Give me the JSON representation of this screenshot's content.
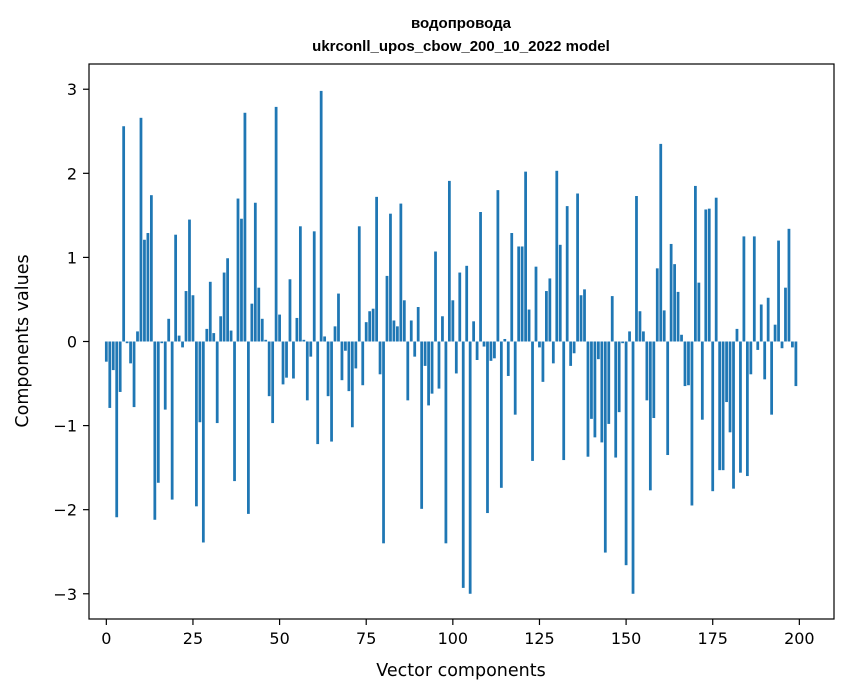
{
  "chart_data": {
    "type": "bar",
    "title_line1": "водопровода",
    "title_line2": "ukrconll_upos_cbow_200_10_2022 model",
    "xlabel": "Vector components",
    "ylabel": "Components values",
    "xlim": [
      -5,
      210
    ],
    "ylim": [
      -3.3,
      3.3
    ],
    "xticks": [
      0,
      25,
      50,
      75,
      100,
      125,
      150,
      175,
      200
    ],
    "xtick_labels": [
      "0",
      "25",
      "50",
      "75",
      "100",
      "125",
      "150",
      "175",
      "200"
    ],
    "yticks": [
      3,
      2,
      1,
      0,
      -1,
      -2,
      -3
    ],
    "ytick_labels": [
      "3",
      "2",
      "1",
      "0",
      "−1",
      "−2",
      "−3"
    ],
    "bar_color": "#1f77b4",
    "grid": false,
    "values": [
      -0.24,
      -0.79,
      -0.34,
      -2.09,
      -0.6,
      2.56,
      -0.02,
      -0.26,
      -0.78,
      0.12,
      2.66,
      1.21,
      1.29,
      1.74,
      -2.12,
      -1.68,
      -0.02,
      -0.81,
      0.27,
      -1.88,
      1.27,
      0.07,
      -0.07,
      0.6,
      1.45,
      0.55,
      -1.96,
      -0.96,
      -2.39,
      0.15,
      0.71,
      0.1,
      -0.97,
      0.3,
      0.82,
      0.99,
      0.13,
      -1.66,
      1.7,
      1.46,
      2.72,
      -2.05,
      0.45,
      1.65,
      0.64,
      0.27,
      0.02,
      -0.65,
      -0.97,
      2.79,
      0.32,
      -0.51,
      -0.43,
      0.74,
      -0.44,
      0.28,
      1.37,
      0.02,
      -0.7,
      -0.18,
      1.31,
      -1.22,
      2.98,
      0.06,
      -0.65,
      -1.19,
      0.18,
      0.57,
      -0.46,
      -0.11,
      -0.59,
      -1.02,
      -0.32,
      1.37,
      -0.52,
      0.23,
      0.36,
      0.39,
      1.72,
      -0.39,
      -2.4,
      0.78,
      1.52,
      0.25,
      0.18,
      1.64,
      0.49,
      -0.7,
      0.25,
      -0.18,
      0.41,
      -1.99,
      -0.29,
      -0.76,
      -0.62,
      1.07,
      -0.56,
      0.3,
      -2.4,
      1.91,
      0.49,
      -0.38,
      0.82,
      -2.93,
      0.9,
      -3.0,
      0.24,
      -0.22,
      1.54,
      -0.06,
      -2.04,
      -0.23,
      -0.2,
      1.8,
      -1.74,
      0.03,
      -0.41,
      1.29,
      -0.87,
      1.13,
      1.13,
      2.02,
      0.38,
      -1.42,
      0.89,
      -0.07,
      -0.48,
      0.6,
      0.75,
      -0.26,
      2.03,
      1.15,
      -1.41,
      1.61,
      -0.29,
      -0.14,
      1.76,
      0.55,
      0.62,
      -1.37,
      -0.92,
      -1.14,
      -0.21,
      -1.2,
      -2.51,
      -0.98,
      0.54,
      -1.38,
      -0.84,
      -0.02,
      -2.66,
      0.12,
      -3.0,
      1.73,
      0.36,
      0.12,
      -0.7,
      -1.77,
      -0.91,
      0.87,
      2.35,
      0.37,
      -1.35,
      1.16,
      0.92,
      0.59,
      0.08,
      -0.53,
      -0.52,
      -1.95,
      1.85,
      0.7,
      -0.93,
      1.57,
      1.58,
      -1.78,
      1.71,
      -1.53,
      -1.53,
      -0.72,
      -1.08,
      -1.75,
      0.15,
      -1.56,
      1.25,
      -1.6,
      -0.39,
      1.25,
      -0.1,
      0.44,
      -0.45,
      0.52,
      -0.87,
      0.2,
      1.2,
      -0.08,
      0.64,
      1.34,
      -0.07,
      -0.53
    ]
  }
}
